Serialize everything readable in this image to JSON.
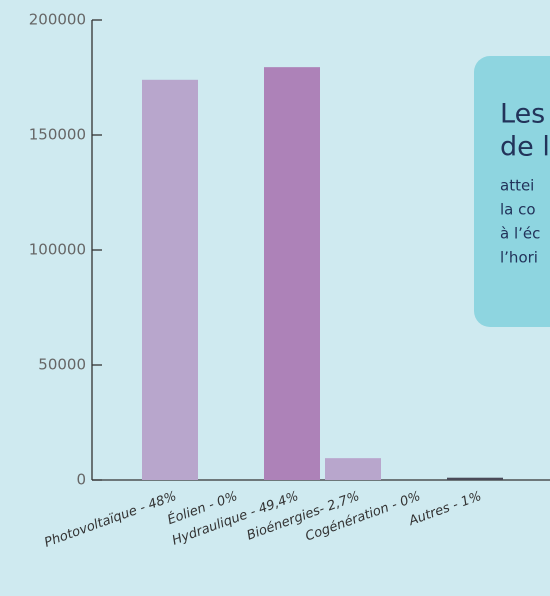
{
  "chart_data": {
    "type": "bar",
    "categories": [
      "Photovoltaïque - 48%",
      "Éolien - 0%",
      "Hydraulique - 49,4%",
      "Bioénergies- 2,7%",
      "Cogénération - 0%",
      "Autres - 1%"
    ],
    "values": [
      174000,
      0,
      179500,
      9500,
      0,
      1000
    ],
    "colors": [
      "#b8a6cc",
      "#b8a6cc",
      "#ad82b8",
      "#b8a6cc",
      "#b8a6cc",
      "#4a4a58"
    ],
    "ylim": [
      0,
      200000
    ],
    "yticks": [
      0,
      50000,
      100000,
      150000,
      200000
    ],
    "grid": false
  },
  "callout": {
    "heading": [
      "Les",
      "de l"
    ],
    "lines": [
      "attei",
      "la co",
      "à l’éc",
      "l’hori"
    ]
  }
}
